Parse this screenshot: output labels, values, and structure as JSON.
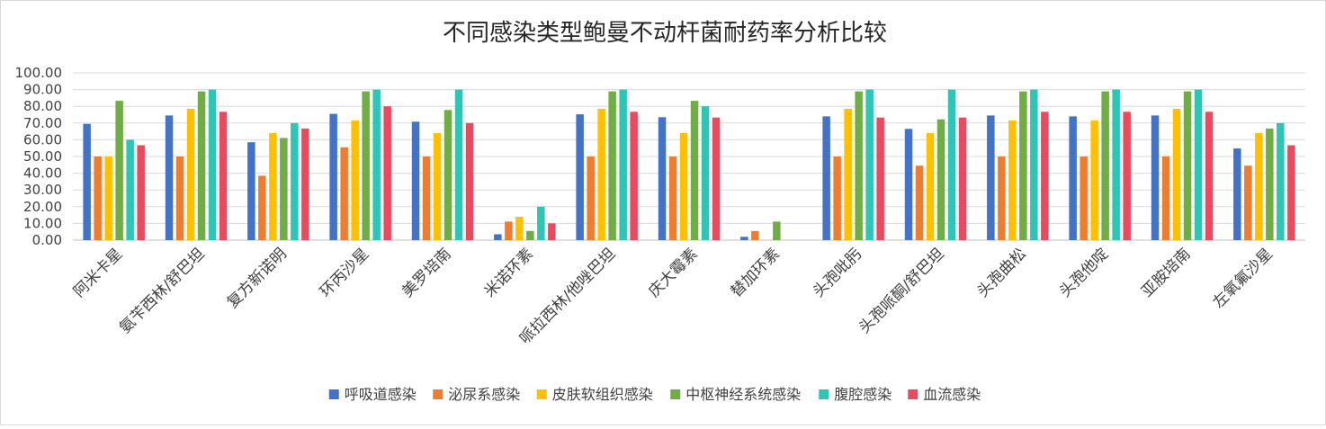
{
  "chart_data": {
    "type": "bar",
    "title": "不同感染类型鲍曼不动杆菌耐药率分析比较",
    "ylim": [
      0,
      100
    ],
    "yticks": [
      "0.00",
      "10.00",
      "20.00",
      "30.00",
      "40.00",
      "50.00",
      "60.00",
      "70.00",
      "80.00",
      "90.00",
      "100.00"
    ],
    "grid": true,
    "legend_position": "bottom",
    "categories": [
      "阿米卡星",
      "氨苄西林/舒巴坦",
      "复方新诺明",
      "环丙沙星",
      "美罗培南",
      "米诺环素",
      "哌拉西林/他唑巴坦",
      "庆大霉素",
      "替加环素",
      "头孢吡肟",
      "头孢哌酮/舒巴坦",
      "头孢曲松",
      "头孢他啶",
      "亚胺培南",
      "左氧氟沙星"
    ],
    "series": [
      {
        "name": "呼吸道感染",
        "color": "#4472c4",
        "values": [
          69.5,
          74.5,
          58.5,
          75.5,
          70.8,
          3.5,
          75.2,
          73.5,
          2.0,
          74.0,
          66.5,
          74.5,
          74.0,
          74.5,
          54.8
        ]
      },
      {
        "name": "泌尿系感染",
        "color": "#ed7d31",
        "values": [
          50.0,
          50.0,
          38.5,
          55.5,
          50.0,
          11.1,
          50.0,
          50.0,
          5.5,
          50.0,
          44.5,
          50.0,
          50.0,
          50.0,
          44.5
        ]
      },
      {
        "name": "皮肤软组织感染",
        "color": "#ffc000",
        "values": [
          50.0,
          78.5,
          64.0,
          71.5,
          64.0,
          14.0,
          78.5,
          64.0,
          0,
          78.5,
          64.0,
          71.5,
          71.5,
          78.5,
          64.0
        ]
      },
      {
        "name": "中枢神经系统感染",
        "color": "#70ad47",
        "values": [
          83.3,
          88.9,
          61.1,
          88.9,
          77.8,
          5.5,
          88.9,
          83.3,
          11.1,
          88.9,
          72.2,
          88.9,
          88.9,
          88.9,
          66.7
        ]
      },
      {
        "name": "腹腔感染",
        "color": "#2ec4b6",
        "values": [
          60.0,
          90.0,
          70.0,
          90.0,
          90.0,
          20.0,
          90.0,
          80.0,
          0,
          90.0,
          90.0,
          90.0,
          90.0,
          90.0,
          70.0
        ]
      },
      {
        "name": "血流感染",
        "color": "#e84a5f",
        "values": [
          56.7,
          76.7,
          66.7,
          80.0,
          70.0,
          10.0,
          76.7,
          73.3,
          0,
          73.3,
          73.3,
          76.7,
          76.7,
          76.7,
          56.7
        ]
      }
    ]
  }
}
